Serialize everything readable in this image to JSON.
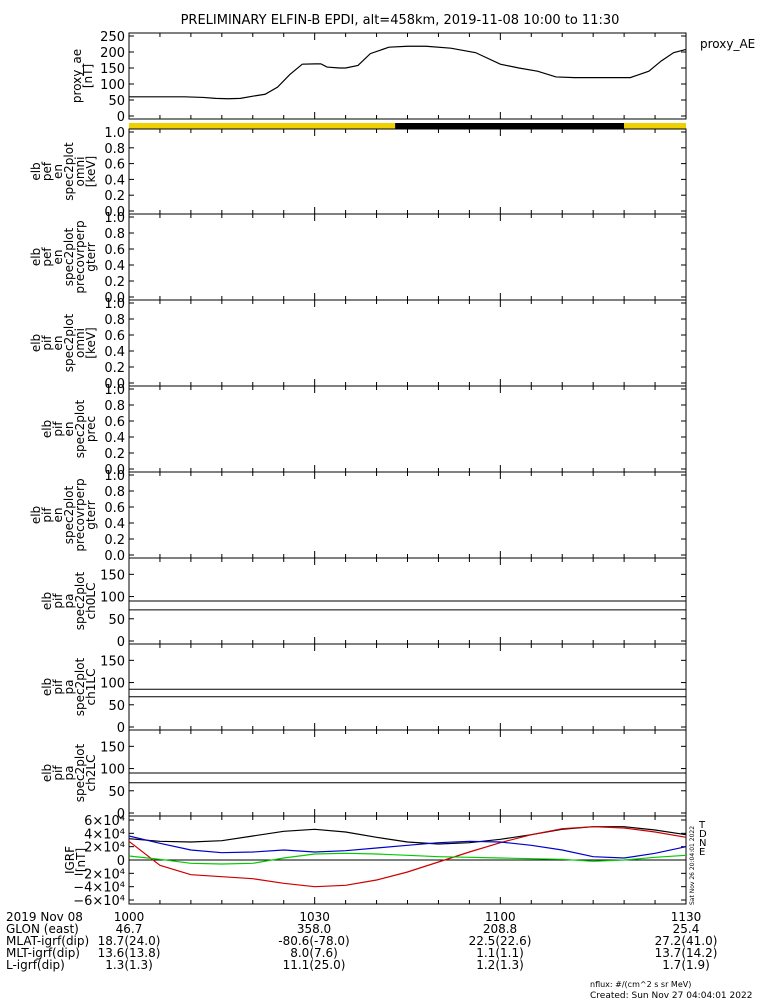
{
  "title": "PRELIMINARY ELFIN-B EPDI, alt=458km, 2019-11-08 10:00 to 11:30",
  "footer": {
    "nflux": "nflux: #/(cm^2 s sr MeV)",
    "created": "Created: Sun Nov 27 04:04:01 2022",
    "side_stamp": "Sat Nov 26 20:04:01 2022"
  },
  "time_axis": {
    "range": [
      "10:00",
      "11:30"
    ],
    "ticks": [
      {
        "t": 0,
        "label": "1000"
      },
      {
        "t": 30,
        "label": "1030"
      },
      {
        "t": 60,
        "label": "1100"
      },
      {
        "t": 90,
        "label": "1130"
      }
    ]
  },
  "ephemeris": {
    "rows": [
      {
        "label": "2019 Nov 08",
        "values": [
          "1000",
          "1030",
          "1100",
          "1130"
        ]
      },
      {
        "label": "GLON (east)",
        "values": [
          "46.7",
          "358.0",
          "208.8",
          "25.4"
        ]
      },
      {
        "label": "MLAT-igrf(dip)",
        "values": [
          "18.7(24.0)",
          "-80.6(-78.0)",
          "22.5(22.6)",
          "27.2(41.0)"
        ]
      },
      {
        "label": "MLT-igrf(dip)",
        "values": [
          "13.6(13.8)",
          "8.0(7.6)",
          "1.1(1.1)",
          "13.7(14.2)"
        ]
      },
      {
        "label": "L-igrf(dip)",
        "values": [
          "1.3(1.3)",
          "11.1(25.0)",
          "1.2(1.3)",
          "1.7(1.9)"
        ]
      }
    ]
  },
  "chart_data": [
    {
      "type": "line",
      "panel": "proxy_ae",
      "ylabel": "proxy_ae [nT]",
      "legend": "proxy_AE",
      "ylim": [
        0,
        250
      ],
      "yticks": [
        "0",
        "50",
        "100",
        "150",
        "200",
        "250"
      ],
      "color": "#000000",
      "series": [
        {
          "name": "proxy_AE",
          "x": [
            0,
            3,
            6,
            9,
            12,
            14,
            16,
            18,
            20,
            22,
            24,
            26,
            28,
            30,
            31,
            32,
            34,
            35,
            37,
            39,
            42,
            45,
            48,
            52,
            56,
            60,
            63,
            66,
            69,
            72,
            75,
            78,
            81,
            84,
            86,
            88,
            90
          ],
          "y": [
            60,
            60,
            60,
            60,
            58,
            55,
            54,
            55,
            62,
            68,
            90,
            130,
            162,
            163,
            163,
            153,
            150,
            150,
            158,
            195,
            215,
            218,
            218,
            212,
            198,
            162,
            150,
            140,
            122,
            120,
            120,
            120,
            120,
            140,
            172,
            198,
            208
          ]
        }
      ]
    },
    {
      "type": "bar",
      "panel": "status_bar",
      "segments": [
        {
          "from": 0,
          "to": 43,
          "color": "#f0d000"
        },
        {
          "from": 43,
          "to": 80,
          "color": "#000000"
        },
        {
          "from": 80,
          "to": 90,
          "color": "#f0d000"
        }
      ]
    },
    {
      "type": "heatmap",
      "panel": "elb_pef_en_spec2plot_omni",
      "ylabel": [
        "elb",
        "pef",
        "en",
        "spec2plot",
        "omni",
        "[keV]"
      ],
      "ylim": [
        0,
        1.0
      ],
      "yticks": [
        "0.0",
        "0.2",
        "0.4",
        "0.6",
        "0.8",
        "1.0"
      ]
    },
    {
      "type": "heatmap",
      "panel": "elb_pef_en_spec2plot_precovrperp_gterr",
      "ylabel": [
        "elb",
        "pef",
        "en",
        "spec2plot",
        "precovrperp",
        "gterr"
      ],
      "ylim": [
        0,
        1.0
      ],
      "yticks": [
        "0.0",
        "0.2",
        "0.4",
        "0.6",
        "0.8",
        "1.0"
      ]
    },
    {
      "type": "heatmap",
      "panel": "elb_pif_en_spec2plot_omni",
      "ylabel": [
        "elb",
        "pif",
        "en",
        "spec2plot",
        "omni",
        "[keV]"
      ],
      "ylim": [
        0,
        1.0
      ],
      "yticks": [
        "0.0",
        "0.2",
        "0.4",
        "0.6",
        "0.8",
        "1.0"
      ]
    },
    {
      "type": "heatmap",
      "panel": "elb_pif_en_spec2plot_prec",
      "ylabel": [
        "elb",
        "pif",
        "en",
        "spec2plot",
        "prec"
      ],
      "ylim": [
        0,
        1.0
      ],
      "yticks": [
        "0.0",
        "0.2",
        "0.4",
        "0.6",
        "0.8",
        "1.0"
      ]
    },
    {
      "type": "heatmap",
      "panel": "elb_pif_en_spec2plot_precovrperp_gterr",
      "ylabel": [
        "elb",
        "pif",
        "en",
        "spec2plot",
        "precovrperp",
        "gterr"
      ],
      "ylim": [
        0,
        1.0
      ],
      "yticks": [
        "0.0",
        "0.2",
        "0.4",
        "0.6",
        "0.8",
        "1.0"
      ]
    },
    {
      "type": "heatmap",
      "panel": "elb_pif_pa_spec2plot_ch0LC",
      "ylabel": [
        "elb",
        "pif",
        "pa",
        "spec2plot",
        "ch0LC"
      ],
      "ylim": [
        0,
        180
      ],
      "yticks": [
        "0",
        "50",
        "100",
        "150"
      ],
      "hlines": [
        90,
        70
      ]
    },
    {
      "type": "heatmap",
      "panel": "elb_pif_pa_spec2plot_ch1LC",
      "ylabel": [
        "elb",
        "pif",
        "pa",
        "spec2plot",
        "ch1LC"
      ],
      "ylim": [
        0,
        180
      ],
      "yticks": [
        "0",
        "50",
        "100",
        "150"
      ],
      "hlines": [
        85,
        68
      ]
    },
    {
      "type": "heatmap",
      "panel": "elb_pif_pa_spec2plot_ch2LC",
      "ylabel": [
        "elb",
        "pif",
        "pa",
        "spec2plot",
        "ch2LC"
      ],
      "ylim": [
        0,
        180
      ],
      "yticks": [
        "0",
        "50",
        "100",
        "150"
      ],
      "hlines": [
        90,
        68
      ]
    },
    {
      "type": "line",
      "panel": "igrf",
      "ylabel": "IGRF [nT]",
      "ylim": [
        -60000,
        60000
      ],
      "yticks": [
        "6×10⁴",
        "4×10⁴",
        "2×10⁴",
        "0",
        "−2×10⁴",
        "−4×10⁴",
        "−6×10⁴"
      ],
      "series": [
        {
          "name": "T",
          "color": "#000000",
          "x": [
            0,
            5,
            10,
            15,
            20,
            25,
            30,
            35,
            40,
            45,
            50,
            55,
            60,
            65,
            70,
            75,
            80,
            85,
            90
          ],
          "y": [
            32000,
            28000,
            27000,
            29000,
            36000,
            43000,
            46000,
            42000,
            34000,
            27000,
            24000,
            26000,
            31000,
            38000,
            46000,
            50000,
            50000,
            45000,
            38000
          ]
        },
        {
          "name": "D",
          "color": "#cc0000",
          "x": [
            0,
            5,
            10,
            15,
            20,
            25,
            30,
            35,
            40,
            45,
            50,
            55,
            60,
            65,
            70,
            75,
            80,
            85,
            90
          ],
          "y": [
            28000,
            -8000,
            -22000,
            -25000,
            -28000,
            -35000,
            -40000,
            -38000,
            -30000,
            -18000,
            -3000,
            12000,
            26000,
            38000,
            47000,
            50000,
            48000,
            42000,
            34000
          ]
        },
        {
          "name": "N",
          "color": "#0000cc",
          "x": [
            0,
            5,
            10,
            15,
            20,
            25,
            30,
            35,
            40,
            45,
            50,
            55,
            60,
            65,
            70,
            75,
            80,
            85,
            90
          ],
          "y": [
            36000,
            25000,
            15000,
            11000,
            12000,
            15000,
            12000,
            14000,
            18000,
            22000,
            26000,
            28000,
            27000,
            22000,
            15000,
            5000,
            3000,
            10000,
            20000
          ]
        },
        {
          "name": "E",
          "color": "#00cc00",
          "x": [
            0,
            5,
            10,
            15,
            20,
            25,
            30,
            35,
            40,
            45,
            50,
            55,
            60,
            65,
            70,
            75,
            80,
            85,
            90
          ],
          "y": [
            6000,
            1000,
            -5000,
            -6000,
            -5000,
            3000,
            9000,
            10000,
            9000,
            7000,
            5000,
            4000,
            3000,
            2000,
            1000,
            -2000,
            0,
            4000,
            7000
          ]
        }
      ]
    }
  ]
}
